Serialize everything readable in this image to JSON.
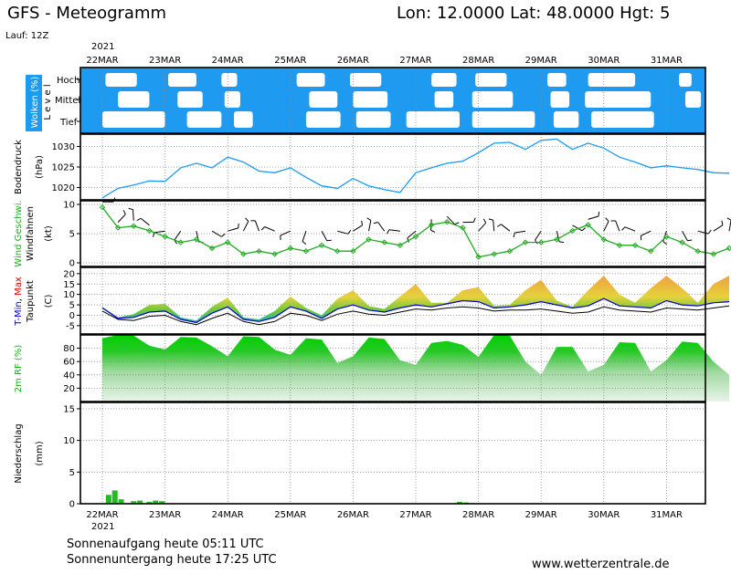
{
  "header": {
    "model_title": "GFS - Meteogramm",
    "location": "Lon: 12.0000  Lat: 48.0000  Hgt: 5",
    "run": "Lauf: 12Z"
  },
  "date_axis": {
    "year": "2021",
    "labels": [
      "22MAR",
      "23MAR",
      "24MAR",
      "25MAR",
      "26MAR",
      "27MAR",
      "28MAR",
      "29MAR",
      "30MAR",
      "31MAR"
    ]
  },
  "footer": {
    "sunrise": "Sonnenaufgang heute 05:11 UTC",
    "sunset": "Sonnenuntergang heute 17:25 UTC",
    "source": "www.wetterzentrale.de"
  },
  "colors": {
    "cloud_bg": "#1e9bf0",
    "pressure": "#1e9bf0",
    "wind": "#22aa22",
    "tmin": "#0000cc",
    "tmax": "#dd0000",
    "rh": "#18b418",
    "rain": "#22bb22"
  },
  "chart_data": [
    {
      "type": "area",
      "title": "Wolken (%)",
      "ylabel": "Level",
      "levels": [
        "Hoch",
        "Mittel",
        "Tief"
      ],
      "x_unit": "days since 2021-03-22 00Z",
      "gaps": {
        "Hoch": [
          [
            0.05,
            0.55
          ],
          [
            1.05,
            1.5
          ],
          [
            1.9,
            2.15
          ],
          [
            3.1,
            3.55
          ],
          [
            3.95,
            4.45
          ],
          [
            5.25,
            5.65
          ],
          [
            5.95,
            6.45
          ],
          [
            7.1,
            7.4
          ],
          [
            7.75,
            8.5
          ],
          [
            9.2,
            9.4
          ]
        ],
        "Mittel": [
          [
            0.25,
            0.75
          ],
          [
            1.2,
            1.6
          ],
          [
            1.95,
            2.2
          ],
          [
            3.3,
            3.75
          ],
          [
            4.0,
            4.55
          ],
          [
            5.3,
            5.6
          ],
          [
            5.9,
            6.55
          ],
          [
            7.15,
            7.45
          ],
          [
            7.7,
            8.75
          ],
          [
            9.3,
            9.55
          ]
        ],
        "Tief": [
          [
            0.0,
            1.0
          ],
          [
            1.35,
            1.9
          ],
          [
            2.1,
            2.4
          ],
          [
            3.25,
            3.8
          ],
          [
            4.05,
            4.6
          ],
          [
            4.85,
            5.7
          ],
          [
            5.9,
            6.9
          ],
          [
            7.2,
            7.6
          ],
          [
            7.8,
            8.8
          ]
        ]
      }
    },
    {
      "type": "line",
      "title": "Bodendruck",
      "ylabel": "(hPa)",
      "ylim": [
        1017,
        1033
      ],
      "ticks": [
        1020,
        1025,
        1030
      ],
      "x": [
        0,
        0.25,
        0.5,
        0.75,
        1,
        1.25,
        1.5,
        1.75,
        2,
        2.25,
        2.5,
        2.75,
        3,
        3.25,
        3.5,
        3.75,
        4,
        4.25,
        4.5,
        4.75,
        5,
        5.25,
        5.5,
        5.75,
        6,
        6.25,
        6.5,
        6.75,
        7,
        7.25,
        7.5,
        7.75,
        8,
        8.25,
        8.5,
        8.75,
        9,
        9.25,
        9.5,
        9.75,
        10
      ],
      "values": [
        1017.5,
        1019.8,
        1020.6,
        1021.6,
        1021.5,
        1024.8,
        1025.9,
        1024.8,
        1027.4,
        1026.2,
        1024.0,
        1023.6,
        1024.8,
        1022.5,
        1020.4,
        1019.8,
        1022.2,
        1020.4,
        1019.5,
        1018.8,
        1023.6,
        1024.8,
        1025.9,
        1026.4,
        1028.5,
        1030.8,
        1031.0,
        1029.3,
        1031.5,
        1031.8,
        1029.3,
        1030.8,
        1029.6,
        1027.4,
        1026.2,
        1024.8,
        1025.3,
        1024.8,
        1024.4,
        1023.6,
        1023.5
      ]
    },
    {
      "type": "line",
      "title": "Wind Geschwi.",
      "ylabel": "(kt)",
      "extra_label": "Windfahnen",
      "ylim": [
        0,
        10
      ],
      "ticks": [
        0,
        5,
        10
      ],
      "x": [
        0,
        0.25,
        0.5,
        0.75,
        1,
        1.25,
        1.5,
        1.75,
        2,
        2.25,
        2.5,
        2.75,
        3,
        3.25,
        3.5,
        3.75,
        4,
        4.25,
        4.5,
        4.75,
        5,
        5.25,
        5.5,
        5.75,
        6,
        6.25,
        6.5,
        6.75,
        7,
        7.25,
        7.5,
        7.75,
        8,
        8.25,
        8.5,
        8.75,
        9,
        9.25,
        9.5,
        9.75,
        10
      ],
      "values": [
        9.5,
        6.0,
        6.3,
        5.5,
        4.5,
        3.5,
        4.0,
        2.5,
        3.5,
        1.5,
        2.0,
        1.5,
        2.5,
        2.0,
        3.0,
        2.0,
        2.0,
        4.0,
        3.5,
        3.0,
        4.5,
        6.5,
        7.0,
        6.0,
        1.0,
        1.5,
        2.0,
        3.5,
        3.5,
        4.0,
        5.5,
        6.5,
        4.0,
        3.0,
        3.0,
        2.0,
        4.5,
        3.5,
        2.0,
        1.5,
        2.5
      ]
    },
    {
      "type": "area",
      "title": "T-Min, Max",
      "ylabel": "(C)",
      "extra_label": "Taupunkt",
      "ylim": [
        -9,
        23
      ],
      "ticks": [
        -5,
        0,
        5,
        10,
        15,
        20
      ],
      "x": [
        0,
        0.25,
        0.5,
        0.75,
        1,
        1.25,
        1.5,
        1.75,
        2,
        2.25,
        2.5,
        2.75,
        3,
        3.25,
        3.5,
        3.75,
        4,
        4.25,
        4.5,
        4.75,
        5,
        5.25,
        5.5,
        5.75,
        6,
        6.25,
        6.5,
        6.75,
        7,
        7.25,
        7.5,
        7.75,
        8,
        8.25,
        8.5,
        8.75,
        9,
        9.25,
        9.5,
        9.75,
        10
      ],
      "tmin": [
        3.5,
        -1.5,
        -1.0,
        1.5,
        2.0,
        -2.0,
        -3.5,
        1.0,
        4.0,
        -2.0,
        -3.0,
        -1.0,
        4.0,
        2.0,
        -1.5,
        3.0,
        5.0,
        2.5,
        1.5,
        3.5,
        5.0,
        4.0,
        5.5,
        7.0,
        6.5,
        3.5,
        4.0,
        5.0,
        6.5,
        5.0,
        3.5,
        4.5,
        8.0,
        4.5,
        4.0,
        3.5,
        7.0,
        5.0,
        4.5,
        6.0,
        6.5
      ],
      "tmax": [
        4.0,
        -1.0,
        0.5,
        5.0,
        5.5,
        -1.0,
        -2.5,
        4.0,
        8.5,
        -1.0,
        -2.0,
        2.0,
        9.0,
        3.5,
        0.0,
        8.0,
        12.0,
        4.5,
        3.0,
        9.0,
        15.0,
        6.0,
        6.0,
        12.0,
        13.5,
        4.5,
        5.0,
        12.0,
        17.0,
        7.0,
        4.0,
        12.0,
        19.0,
        10.0,
        6.0,
        13.0,
        19.0,
        13.0,
        6.0,
        15.0,
        19.0
      ],
      "dewpoint": [
        2.0,
        -2.0,
        -2.5,
        -0.5,
        0.0,
        -3.0,
        -4.5,
        -1.5,
        1.0,
        -3.0,
        -4.5,
        -3.0,
        1.0,
        0.0,
        -2.5,
        0.5,
        2.0,
        0.5,
        0.0,
        1.5,
        3.0,
        2.5,
        3.5,
        4.0,
        3.5,
        2.0,
        2.5,
        2.5,
        3.0,
        2.0,
        1.0,
        1.5,
        4.0,
        2.5,
        2.0,
        1.5,
        3.5,
        3.0,
        2.5,
        3.5,
        4.5
      ]
    },
    {
      "type": "area",
      "title": "2m RF (%)",
      "ylim": [
        0,
        100
      ],
      "ticks": [
        20,
        40,
        60,
        80
      ],
      "x": [
        0,
        0.25,
        0.5,
        0.75,
        1,
        1.25,
        1.5,
        1.75,
        2,
        2.25,
        2.5,
        2.75,
        3,
        3.25,
        3.5,
        3.75,
        4,
        4.25,
        4.5,
        4.75,
        5,
        5.25,
        5.5,
        5.75,
        6,
        6.25,
        6.5,
        6.75,
        7,
        7.25,
        7.5,
        7.75,
        8,
        8.25,
        8.5,
        8.75,
        9,
        9.25,
        9.5,
        9.75,
        10
      ],
      "values": [
        95,
        100,
        99,
        84,
        78,
        97,
        96,
        83,
        68,
        98,
        97,
        78,
        70,
        95,
        93,
        58,
        68,
        96,
        94,
        62,
        55,
        88,
        91,
        85,
        67,
        100,
        99,
        60,
        40,
        82,
        82,
        45,
        55,
        89,
        88,
        45,
        62,
        90,
        88,
        60,
        40
      ]
    },
    {
      "type": "bar",
      "title": "Niederschlag",
      "ylabel": "(mm)",
      "ylim": [
        0,
        16
      ],
      "ticks": [
        0,
        5,
        10,
        15
      ],
      "x": [
        0.1,
        0.2,
        0.3,
        0.5,
        0.6,
        0.75,
        0.85,
        0.95,
        5.7,
        5.8,
        5.9
      ],
      "values": [
        1.4,
        2.1,
        0.7,
        0.4,
        0.5,
        0.3,
        0.5,
        0.4,
        0.3,
        0.2,
        0.1
      ]
    }
  ]
}
